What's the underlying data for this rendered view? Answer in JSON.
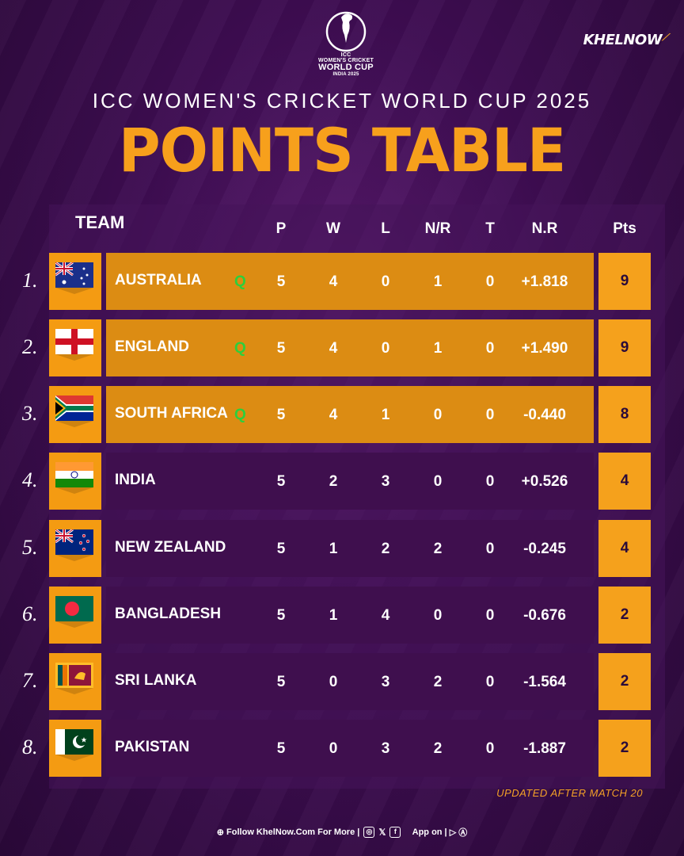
{
  "logo": {
    "line1": "ICC",
    "line2": "WOMEN'S CRICKET",
    "line3": "WORLD CUP",
    "line4": "INDIA 2025"
  },
  "brand": "KHELNOW",
  "subtitle": "ICC WOMEN'S CRICKET WORLD CUP 2025",
  "title": "POINTS TABLE",
  "headers": {
    "team": "TEAM",
    "p": "P",
    "w": "W",
    "l": "L",
    "nr": "N/R",
    "t": "T",
    "nrr": "N.R",
    "pts": "Pts"
  },
  "qualified_mark": "Q",
  "rows": [
    {
      "rank": "1.",
      "team": "AUSTRALIA",
      "p": "5",
      "w": "4",
      "l": "0",
      "nr": "1",
      "t": "0",
      "nrr": "+1.818",
      "pts": "9",
      "q": true,
      "flag": "australia-flag"
    },
    {
      "rank": "2.",
      "team": "ENGLAND",
      "p": "5",
      "w": "4",
      "l": "0",
      "nr": "1",
      "t": "0",
      "nrr": "+1.490",
      "pts": "9",
      "q": true,
      "flag": "england-flag"
    },
    {
      "rank": "3.",
      "team": "SOUTH AFRICA",
      "p": "5",
      "w": "4",
      "l": "1",
      "nr": "0",
      "t": "0",
      "nrr": "-0.440",
      "pts": "8",
      "q": true,
      "flag": "south-africa-flag"
    },
    {
      "rank": "4.",
      "team": "INDIA",
      "p": "5",
      "w": "2",
      "l": "3",
      "nr": "0",
      "t": "0",
      "nrr": "+0.526",
      "pts": "4",
      "q": false,
      "flag": "india-flag"
    },
    {
      "rank": "5.",
      "team": "NEW ZEALAND",
      "p": "5",
      "w": "1",
      "l": "2",
      "nr": "2",
      "t": "0",
      "nrr": "-0.245",
      "pts": "4",
      "q": false,
      "flag": "new-zealand-flag"
    },
    {
      "rank": "6.",
      "team": "BANGLADESH",
      "p": "5",
      "w": "1",
      "l": "4",
      "nr": "0",
      "t": "0",
      "nrr": "-0.676",
      "pts": "2",
      "q": false,
      "flag": "bangladesh-flag"
    },
    {
      "rank": "7.",
      "team": "SRI LANKA",
      "p": "5",
      "w": "0",
      "l": "3",
      "nr": "2",
      "t": "0",
      "nrr": "-1.564",
      "pts": "2",
      "q": false,
      "flag": "sri-lanka-flag"
    },
    {
      "rank": "8.",
      "team": "PAKISTAN",
      "p": "5",
      "w": "0",
      "l": "3",
      "nr": "2",
      "t": "0",
      "nrr": "-1.887",
      "pts": "2",
      "q": false,
      "flag": "pakistan-flag"
    }
  ],
  "updated": "UPDATED AFTER MATCH 20",
  "footer": {
    "follow": "Follow KhelNow.Com For More |",
    "app": "App on |"
  },
  "colors": {
    "accent": "#f7a01c",
    "qualified_row": "#dc8c13",
    "other_row": "#3f0f4e",
    "qualified_mark": "#2dcf3c",
    "background": "#3e0d52"
  }
}
